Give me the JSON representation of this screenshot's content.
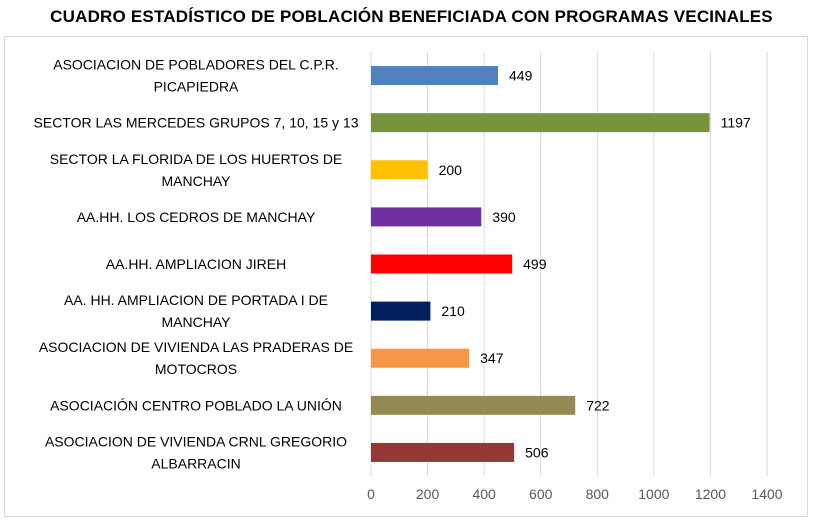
{
  "chart_data": {
    "type": "bar",
    "orientation": "horizontal",
    "title": "CUADRO ESTADÍSTICO DE POBLACIÓN BENEFICIADA CON PROGRAMAS VECINALES",
    "xlabel": "",
    "ylabel": "",
    "xlim": [
      0,
      1400
    ],
    "ticks": [
      0,
      200,
      400,
      600,
      800,
      1000,
      1200,
      1400
    ],
    "grid": true,
    "legend": "none",
    "categories": [
      "ASOCIACION DE POBLADORES DEL C.P.R. PICAPIEDRA",
      "SECTOR LAS MERCEDES GRUPOS 7, 10, 15 y 13",
      "SECTOR LA FLORIDA DE LOS HUERTOS DE MANCHAY",
      "AA.HH. LOS CEDROS DE MANCHAY",
      "AA.HH. AMPLIACION JIREH",
      "AA. HH.  AMPLIACION DE PORTADA I DE MANCHAY",
      "ASOCIACION DE VIVIENDA LAS PRADERAS DE MOTOCROS",
      "ASOCIACIÓN CENTRO POBLADO LA UNIÓN",
      "ASOCIACION DE VIVIENDA CRNL GREGORIO ALBARRACIN"
    ],
    "label_lines": [
      [
        "ASOCIACION DE POBLADORES DEL C.P.R.",
        "PICAPIEDRA"
      ],
      [
        "SECTOR LAS MERCEDES GRUPOS 7, 10, 15 y 13"
      ],
      [
        "SECTOR LA FLORIDA DE LOS HUERTOS DE",
        "MANCHAY"
      ],
      [
        "AA.HH. LOS CEDROS DE MANCHAY"
      ],
      [
        "AA.HH. AMPLIACION JIREH"
      ],
      [
        "AA. HH.  AMPLIACION DE PORTADA I DE",
        "MANCHAY"
      ],
      [
        "ASOCIACION DE VIVIENDA LAS PRADERAS DE",
        "MOTOCROS"
      ],
      [
        "ASOCIACIÓN CENTRO POBLADO LA UNIÓN"
      ],
      [
        "ASOCIACION DE VIVIENDA CRNL GREGORIO",
        "ALBARRACIN"
      ]
    ],
    "values": [
      449,
      1197,
      200,
      390,
      499,
      210,
      347,
      722,
      506
    ],
    "colors": [
      "#4f81bd",
      "#77933c",
      "#ffc000",
      "#7030a0",
      "#ff0000",
      "#002060",
      "#f79646",
      "#948a54",
      "#953735"
    ]
  }
}
